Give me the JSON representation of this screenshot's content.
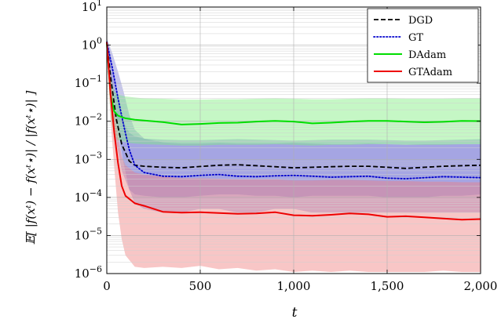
{
  "chart_data": {
    "type": "line",
    "xlabel": "t",
    "ylabel": "𝔼[ |f(xᵗ) − f(xᵗ⋆)| / |f(xᵗ⋆)| ]",
    "xlim": [
      0,
      2000
    ],
    "ylim": [
      1e-06,
      10
    ],
    "yscale": "log",
    "grid": true,
    "legend_position": "top-right",
    "x_ticks": [
      0,
      500,
      1000,
      1500,
      2000
    ],
    "x_tick_labels": [
      "0",
      "500",
      "1,000",
      "1,500",
      "2,000"
    ],
    "y_ticks": [
      1e-06,
      1e-05,
      0.0001,
      0.001,
      0.01,
      0.1,
      1,
      10
    ],
    "y_tick_labels": [
      {
        "base": "10",
        "exp": "−6"
      },
      {
        "base": "10",
        "exp": "−5"
      },
      {
        "base": "10",
        "exp": "−4"
      },
      {
        "base": "10",
        "exp": "−3"
      },
      {
        "base": "10",
        "exp": "−2"
      },
      {
        "base": "10",
        "exp": "−1"
      },
      {
        "base": "10",
        "exp": "0"
      },
      {
        "base": "10",
        "exp": "1"
      }
    ],
    "series": [
      {
        "name": "DGD",
        "color": "#000000",
        "dash": "dashed",
        "band_color": "#7f7fd6",
        "x": [
          0,
          20,
          50,
          80,
          120,
          150,
          200,
          300,
          400,
          500,
          600,
          700,
          800,
          900,
          1000,
          1100,
          1200,
          1300,
          1400,
          1500,
          1600,
          1700,
          1800,
          1900,
          2000
        ],
        "mean": [
          1.2,
          0.15,
          0.012,
          0.0025,
          0.0009,
          0.0007,
          0.00066,
          0.00062,
          0.0006,
          0.00065,
          0.0007,
          0.00072,
          0.00068,
          0.00064,
          0.0006,
          0.00062,
          0.00064,
          0.00066,
          0.00066,
          0.00062,
          0.00058,
          0.00062,
          0.00066,
          0.00068,
          0.0007
        ],
        "upper": [
          1.5,
          0.4,
          0.06,
          0.012,
          0.005,
          0.004,
          0.0035,
          0.0033,
          0.0032,
          0.0032,
          0.0033,
          0.0034,
          0.0033,
          0.0032,
          0.0031,
          0.0032,
          0.0033,
          0.0033,
          0.0033,
          0.0032,
          0.0031,
          0.0031,
          0.0032,
          0.0033,
          0.0034
        ],
        "lower": [
          0.9,
          0.05,
          0.003,
          0.0005,
          0.00016,
          0.00012,
          0.00011,
          0.0001,
          0.0001,
          0.00011,
          0.00012,
          0.00012,
          0.00011,
          0.00011,
          0.0001,
          0.00011,
          0.00011,
          0.00011,
          0.00011,
          0.0001,
          0.0001,
          0.0001,
          0.00011,
          0.00011,
          0.00012
        ]
      },
      {
        "name": "GT",
        "color": "#0000cc",
        "dash": "dotted",
        "band_color": "#7f7fd6",
        "x": [
          0,
          30,
          60,
          90,
          120,
          150,
          200,
          300,
          400,
          500,
          600,
          700,
          800,
          900,
          1000,
          1100,
          1200,
          1300,
          1400,
          1500,
          1600,
          1700,
          1800,
          1900,
          2000
        ],
        "mean": [
          1.2,
          0.25,
          0.04,
          0.008,
          0.0018,
          0.0007,
          0.00045,
          0.00036,
          0.00035,
          0.00038,
          0.0004,
          0.00036,
          0.00035,
          0.00037,
          0.00038,
          0.00036,
          0.00034,
          0.00035,
          0.00036,
          0.00032,
          0.00031,
          0.00033,
          0.00035,
          0.00034,
          0.00033
        ],
        "upper": [
          1.5,
          0.6,
          0.2,
          0.06,
          0.015,
          0.006,
          0.0035,
          0.0028,
          0.0026,
          0.0026,
          0.0027,
          0.0026,
          0.0026,
          0.0026,
          0.0027,
          0.0026,
          0.0025,
          0.0025,
          0.0026,
          0.0025,
          0.0024,
          0.0025,
          0.0025,
          0.0025,
          0.0025
        ],
        "lower": [
          0.9,
          0.08,
          0.006,
          0.0008,
          0.00016,
          7e-05,
          5e-05,
          4e-05,
          4e-05,
          5e-05,
          5e-05,
          4e-05,
          4e-05,
          5e-05,
          5e-05,
          4e-05,
          4e-05,
          4e-05,
          4e-05,
          4e-05,
          4e-05,
          4e-05,
          4e-05,
          4e-05,
          4e-05
        ]
      },
      {
        "name": "DAdam",
        "color": "#00dd00",
        "dash": "solid",
        "band_color": "#7fee7f",
        "x": [
          0,
          20,
          40,
          60,
          100,
          150,
          200,
          300,
          400,
          500,
          600,
          700,
          800,
          900,
          1000,
          1100,
          1200,
          1300,
          1400,
          1500,
          1600,
          1700,
          1800,
          1900,
          2000
        ],
        "mean": [
          1.1,
          0.05,
          0.018,
          0.014,
          0.012,
          0.011,
          0.0105,
          0.0095,
          0.0082,
          0.0085,
          0.009,
          0.0092,
          0.0098,
          0.0102,
          0.0098,
          0.0088,
          0.0092,
          0.0098,
          0.0102,
          0.0102,
          0.0098,
          0.0094,
          0.0097,
          0.0102,
          0.0101
        ],
        "upper": [
          1.4,
          0.15,
          0.06,
          0.05,
          0.045,
          0.042,
          0.04,
          0.039,
          0.037,
          0.037,
          0.038,
          0.038,
          0.039,
          0.04,
          0.039,
          0.038,
          0.038,
          0.039,
          0.04,
          0.04,
          0.039,
          0.039,
          0.039,
          0.04,
          0.04
        ],
        "lower": [
          0.8,
          0.012,
          0.004,
          0.0032,
          0.0028,
          0.0026,
          0.0025,
          0.0024,
          0.0023,
          0.0023,
          0.0024,
          0.0024,
          0.0024,
          0.0025,
          0.0024,
          0.0023,
          0.0024,
          0.0024,
          0.0025,
          0.0025,
          0.0024,
          0.0024,
          0.0024,
          0.0025,
          0.0025
        ]
      },
      {
        "name": "GTAdam",
        "color": "#ee0000",
        "dash": "solid",
        "band_color": "#f08080",
        "x": [
          0,
          20,
          40,
          60,
          80,
          100,
          150,
          200,
          300,
          400,
          500,
          600,
          700,
          800,
          900,
          1000,
          1100,
          1200,
          1300,
          1400,
          1500,
          1600,
          1700,
          1800,
          1900,
          2000
        ],
        "mean": [
          1.2,
          0.05,
          0.005,
          0.0008,
          0.0002,
          0.00011,
          7e-05,
          6e-05,
          4.2e-05,
          4e-05,
          4.1e-05,
          3.9e-05,
          3.7e-05,
          3.8e-05,
          4.1e-05,
          3.4e-05,
          3.3e-05,
          3.5e-05,
          3.8e-05,
          3.6e-05,
          3.1e-05,
          3.2e-05,
          3e-05,
          2.8e-05,
          2.6e-05,
          2.7e-05
        ],
        "upper": [
          1.5,
          0.2,
          0.02,
          0.004,
          0.0012,
          0.0007,
          0.00045,
          0.0004,
          0.00035,
          0.00032,
          0.00032,
          0.00031,
          0.0003,
          0.0003,
          0.0003,
          0.00028,
          0.00028,
          0.00029,
          0.00029,
          0.00028,
          0.00027,
          0.00027,
          0.00026,
          0.00026,
          0.00025,
          0.00025
        ],
        "lower": [
          0.9,
          0.012,
          0.0006,
          4e-05,
          8e-06,
          3e-06,
          1.5e-06,
          1.4e-06,
          1.5e-06,
          1.4e-06,
          1.6e-06,
          1.3e-06,
          1.4e-06,
          1.2e-06,
          1.3e-06,
          1.1e-06,
          1.2e-06,
          1.1e-06,
          1.2e-06,
          1.1e-06,
          1.1e-06,
          1.1e-06,
          1.1e-06,
          1.2e-06,
          1.1e-06,
          1.1e-06
        ]
      }
    ]
  }
}
